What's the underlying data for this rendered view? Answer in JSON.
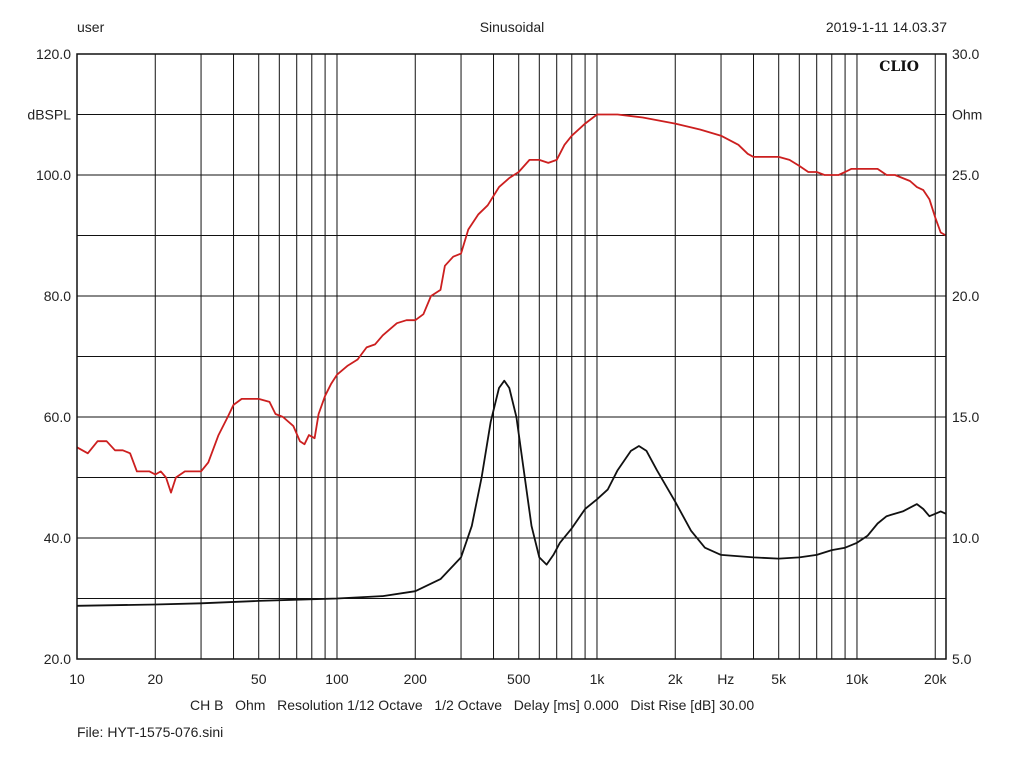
{
  "header": {
    "user": "user",
    "mode": "Sinusoidal",
    "timestamp": "2019-1-11 14.03.37"
  },
  "footer": {
    "settings_line": "CH B   Ohm   Resolution 1/12 Octave   1/2 Octave   Delay [ms] 0.000   Dist Rise [dB] 30.00",
    "file_line": "File: HYT-1575-076.sini"
  },
  "chart_data": {
    "type": "line",
    "brand_label": "CLIO",
    "x_scale": "log",
    "xlim": [
      10,
      22000
    ],
    "x_ticks": [
      {
        "v": 10,
        "label": "10"
      },
      {
        "v": 20,
        "label": "20"
      },
      {
        "v": 50,
        "label": "50"
      },
      {
        "v": 100,
        "label": "100"
      },
      {
        "v": 200,
        "label": "200"
      },
      {
        "v": 500,
        "label": "500"
      },
      {
        "v": 1000,
        "label": "1k"
      },
      {
        "v": 2000,
        "label": "2k"
      },
      {
        "v": 5000,
        "label": "5k"
      },
      {
        "v": 10000,
        "label": "10k"
      },
      {
        "v": 20000,
        "label": "20k"
      }
    ],
    "x_unit_label": "Hz",
    "x_unit_at": 2900,
    "x_gridlines": [
      10,
      20,
      30,
      40,
      50,
      60,
      70,
      80,
      90,
      100,
      200,
      300,
      400,
      500,
      600,
      700,
      800,
      900,
      1000,
      2000,
      3000,
      4000,
      5000,
      6000,
      7000,
      8000,
      9000,
      10000,
      20000
    ],
    "left_axis": {
      "ylim": [
        20,
        120
      ],
      "ticks": [
        20,
        40,
        60,
        80,
        100,
        120
      ],
      "tick_labels": [
        "20.0",
        "40.0",
        "60.0",
        "80.0",
        "100.0",
        "120.0"
      ],
      "unit_label": "dBSPL",
      "unit_at": 110
    },
    "right_axis": {
      "ylim": [
        5,
        30
      ],
      "ticks": [
        5,
        10,
        15,
        20,
        25,
        30
      ],
      "tick_labels": [
        "5.0",
        "10.0",
        "15.0",
        "20.0",
        "25.0",
        "30.0"
      ],
      "unit_label": "Ohm",
      "unit_at": 27.5
    },
    "y_gridlines": [
      20,
      30,
      40,
      50,
      60,
      70,
      80,
      90,
      100,
      110,
      120
    ],
    "series": [
      {
        "name": "SPL",
        "axis": "left",
        "color": "#cc1f1f",
        "points": [
          [
            10,
            55
          ],
          [
            11,
            54
          ],
          [
            12,
            56
          ],
          [
            13,
            56
          ],
          [
            14,
            54.5
          ],
          [
            15,
            54.5
          ],
          [
            16,
            54
          ],
          [
            17,
            51
          ],
          [
            18,
            51
          ],
          [
            19,
            51
          ],
          [
            20,
            50.5
          ],
          [
            21,
            51
          ],
          [
            22,
            50
          ],
          [
            23,
            47.5
          ],
          [
            24,
            50
          ],
          [
            26,
            51
          ],
          [
            28,
            51
          ],
          [
            30,
            51
          ],
          [
            32,
            52.5
          ],
          [
            35,
            57
          ],
          [
            38,
            60
          ],
          [
            40,
            62
          ],
          [
            43,
            63
          ],
          [
            46,
            63
          ],
          [
            50,
            63
          ],
          [
            55,
            62.5
          ],
          [
            58,
            60.5
          ],
          [
            62,
            60
          ],
          [
            68,
            58.5
          ],
          [
            72,
            56
          ],
          [
            75,
            55.5
          ],
          [
            78,
            57
          ],
          [
            82,
            56.5
          ],
          [
            85,
            60.5
          ],
          [
            90,
            63.5
          ],
          [
            95,
            65.5
          ],
          [
            100,
            67
          ],
          [
            110,
            68.5
          ],
          [
            120,
            69.5
          ],
          [
            130,
            71.5
          ],
          [
            140,
            72
          ],
          [
            150,
            73.5
          ],
          [
            170,
            75.5
          ],
          [
            185,
            76
          ],
          [
            200,
            76
          ],
          [
            215,
            77
          ],
          [
            230,
            80
          ],
          [
            250,
            81
          ],
          [
            260,
            85
          ],
          [
            280,
            86.5
          ],
          [
            300,
            87
          ],
          [
            320,
            91
          ],
          [
            350,
            93.5
          ],
          [
            380,
            95
          ],
          [
            420,
            98
          ],
          [
            460,
            99.5
          ],
          [
            500,
            100.5
          ],
          [
            550,
            102.5
          ],
          [
            600,
            102.5
          ],
          [
            650,
            102
          ],
          [
            700,
            102.5
          ],
          [
            750,
            105
          ],
          [
            800,
            106.5
          ],
          [
            900,
            108.5
          ],
          [
            1000,
            110
          ],
          [
            1100,
            110
          ],
          [
            1200,
            110
          ],
          [
            1500,
            109.5
          ],
          [
            2000,
            108.5
          ],
          [
            2500,
            107.5
          ],
          [
            3000,
            106.5
          ],
          [
            3500,
            105
          ],
          [
            3800,
            103.5
          ],
          [
            4000,
            103
          ],
          [
            4500,
            103
          ],
          [
            5000,
            103
          ],
          [
            5500,
            102.5
          ],
          [
            6000,
            101.5
          ],
          [
            6500,
            100.5
          ],
          [
            7000,
            100.5
          ],
          [
            7500,
            100
          ],
          [
            8000,
            100
          ],
          [
            8500,
            100
          ],
          [
            9000,
            100.5
          ],
          [
            9500,
            101
          ],
          [
            10000,
            101
          ],
          [
            11000,
            101
          ],
          [
            12000,
            101
          ],
          [
            13000,
            100
          ],
          [
            14000,
            100
          ],
          [
            16000,
            99
          ],
          [
            17000,
            98
          ],
          [
            18000,
            97.5
          ],
          [
            19000,
            96
          ],
          [
            20000,
            93
          ],
          [
            21000,
            90.5
          ],
          [
            22000,
            90
          ]
        ]
      },
      {
        "name": "Impedance",
        "axis": "right",
        "color": "#111111",
        "points": [
          [
            10,
            7.2
          ],
          [
            20,
            7.25
          ],
          [
            30,
            7.3
          ],
          [
            50,
            7.4
          ],
          [
            70,
            7.45
          ],
          [
            100,
            7.5
          ],
          [
            150,
            7.6
          ],
          [
            200,
            7.8
          ],
          [
            250,
            8.3
          ],
          [
            300,
            9.2
          ],
          [
            330,
            10.5
          ],
          [
            360,
            12.5
          ],
          [
            390,
            14.8
          ],
          [
            420,
            16.2
          ],
          [
            440,
            16.5
          ],
          [
            460,
            16.2
          ],
          [
            490,
            15
          ],
          [
            520,
            13
          ],
          [
            560,
            10.5
          ],
          [
            600,
            9.2
          ],
          [
            640,
            8.9
          ],
          [
            680,
            9.3
          ],
          [
            720,
            9.8
          ],
          [
            800,
            10.4
          ],
          [
            900,
            11.2
          ],
          [
            1000,
            11.6
          ],
          [
            1100,
            12
          ],
          [
            1200,
            12.8
          ],
          [
            1350,
            13.6
          ],
          [
            1450,
            13.8
          ],
          [
            1550,
            13.6
          ],
          [
            1700,
            12.8
          ],
          [
            2000,
            11.5
          ],
          [
            2300,
            10.3
          ],
          [
            2600,
            9.6
          ],
          [
            3000,
            9.3
          ],
          [
            4000,
            9.2
          ],
          [
            5000,
            9.15
          ],
          [
            6000,
            9.2
          ],
          [
            7000,
            9.3
          ],
          [
            8000,
            9.5
          ],
          [
            9000,
            9.6
          ],
          [
            10000,
            9.8
          ],
          [
            11000,
            10.1
          ],
          [
            12000,
            10.6
          ],
          [
            13000,
            10.9
          ],
          [
            15000,
            11.1
          ],
          [
            17000,
            11.4
          ],
          [
            18000,
            11.2
          ],
          [
            19000,
            10.9
          ],
          [
            20000,
            11
          ],
          [
            21000,
            11.1
          ],
          [
            22000,
            11
          ]
        ]
      }
    ]
  }
}
